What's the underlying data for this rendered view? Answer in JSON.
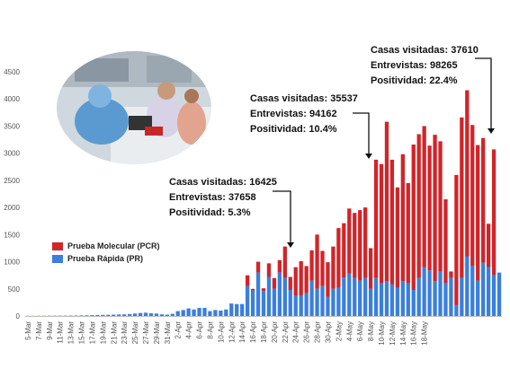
{
  "colors": {
    "pcr": "#d0252a",
    "pr": "#3a7fdc",
    "axis": "#bfbfbf"
  },
  "photo": {
    "icon": "medical-testing-photo"
  },
  "legend": [
    {
      "label": "Prueba Molecular (PCR)",
      "color": "#d0252a"
    },
    {
      "label": "Prueba Rápida (PR)",
      "color": "#3a7fdc"
    }
  ],
  "annotations": [
    {
      "line1": "Casas visitadas: 16425",
      "line2": "Entrevistas: 37658",
      "line3": "Positividad: 5.3%"
    },
    {
      "line1": "Casas visitadas: 35537",
      "line2": "Entrevistas: 94162",
      "line3": "Positividad: 10.4%"
    },
    {
      "line1": "Casas visitadas: 37610",
      "line2": "Entrevistas: 98265",
      "line3": "Positividad: 22.4%"
    }
  ],
  "chart_data": {
    "type": "bar",
    "stacked": true,
    "ylim": [
      0,
      4500
    ],
    "yticks": [
      0,
      500,
      1000,
      1500,
      2000,
      2500,
      3000,
      3500,
      4000,
      4500
    ],
    "grid": false,
    "legend_position": "left",
    "tick_labels": [
      "5-Mar",
      "7-Mar",
      "9-Mar",
      "11-Mar",
      "13-Mar",
      "15-Mar",
      "17-Mar",
      "19-Mar",
      "21-Mar",
      "23-Mar",
      "25-Mar",
      "27-Mar",
      "29-Mar",
      "31-Mar",
      "2-Apr",
      "4-Apr",
      "6-Apr",
      "8-Apr",
      "10-Apr",
      "12-Apr",
      "14-Apr",
      "16-Apr",
      "18-Apr",
      "20-Apr",
      "22-Apr",
      "24-Apr",
      "26-Apr",
      "28-Apr",
      "30-Apr",
      "2-May",
      "4-May",
      "6-May",
      "8-May",
      "10-May",
      "12-May",
      "14-May",
      "16-May",
      "18-May"
    ],
    "series": [
      {
        "name": "Prueba Rápida (PR)",
        "values": [
          3,
          3,
          4,
          4,
          5,
          5,
          6,
          6,
          7,
          8,
          10,
          12,
          15,
          18,
          20,
          22,
          25,
          28,
          30,
          35,
          45,
          55,
          60,
          50,
          45,
          30,
          25,
          40,
          90,
          110,
          140,
          120,
          150,
          150,
          90,
          110,
          100,
          120,
          230,
          220,
          220,
          550,
          470,
          800,
          460,
          720,
          500,
          800,
          700,
          480,
          370,
          380,
          420,
          650,
          500,
          550,
          350,
          500,
          520,
          710,
          780,
          700,
          650,
          700,
          500,
          700,
          600,
          640,
          580,
          520,
          640,
          600,
          480,
          700,
          900,
          840,
          640,
          820,
          600,
          700,
          200,
          700,
          1100,
          920,
          650,
          980,
          900,
          750,
          800
        ]
      },
      {
        "name": "Prueba Molecular (PCR)",
        "values": [
          0,
          0,
          0,
          0,
          0,
          0,
          0,
          0,
          0,
          0,
          0,
          0,
          0,
          0,
          0,
          0,
          0,
          0,
          0,
          0,
          0,
          0,
          0,
          0,
          0,
          0,
          0,
          0,
          0,
          0,
          0,
          0,
          0,
          0,
          0,
          0,
          0,
          0,
          0,
          0,
          0,
          200,
          30,
          200,
          50,
          250,
          200,
          230,
          580,
          240,
          530,
          630,
          500,
          560,
          1000,
          650,
          640,
          780,
          1100,
          1000,
          1200,
          1200,
          1300,
          1300,
          750,
          2180,
          2200,
          2940,
          2300,
          1850,
          2340,
          1850,
          2680,
          2650,
          2600,
          2300,
          2700,
          2400,
          1550,
          120,
          2400,
          2960,
          3060,
          2600,
          2500,
          2300,
          800,
          2320
        ]
      }
    ]
  }
}
